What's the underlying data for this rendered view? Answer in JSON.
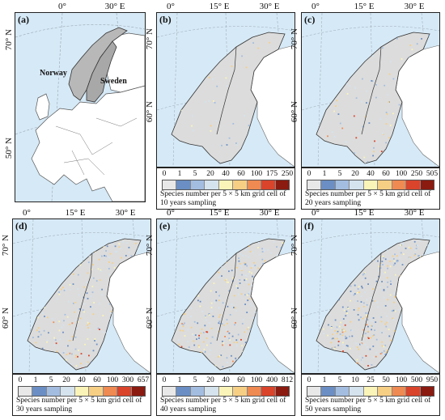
{
  "legend_colors": [
    "#e8e8e8",
    "#6b8fc4",
    "#a3bde0",
    "#d4e3ee",
    "#fbf4b8",
    "#f6cf85",
    "#ef8a52",
    "#d9442b",
    "#8b1a10"
  ],
  "land_color": "#dcdcdc",
  "sea_color": "#d6e9f6",
  "panels": [
    {
      "label": "(a)",
      "ticks_top": [
        "0°",
        "30° E"
      ],
      "ticks_left": [
        "70° N",
        "50° N"
      ],
      "countries": [
        "Norway",
        "Sweden"
      ]
    },
    {
      "label": "(b)",
      "ticks_top": [
        "0°",
        "15° E",
        "30° E"
      ],
      "ticks_left": [
        "70° N",
        "60° N"
      ],
      "legend_ticks": [
        "0",
        "1",
        "5",
        "20",
        "40",
        "60",
        "100",
        "175",
        "250"
      ],
      "legend_caption": "Species number per 5 × 5 km grid cell of 10 years sampling"
    },
    {
      "label": "(c)",
      "ticks_top": [
        "0°",
        "15° E",
        "30° E"
      ],
      "ticks_left": [
        "70° N",
        "60° N"
      ],
      "legend_ticks": [
        "0",
        "1",
        "5",
        "20",
        "40",
        "60",
        "100",
        "250",
        "505"
      ],
      "legend_caption": "Species number per 5 × 5 km grid cell of 20 years sampling"
    },
    {
      "label": "(d)",
      "ticks_top": [
        "0°",
        "15° E",
        "30° E"
      ],
      "ticks_left": [
        "70° N",
        "60° N"
      ],
      "legend_ticks": [
        "0",
        "1",
        "5",
        "20",
        "40",
        "60",
        "100",
        "300",
        "657"
      ],
      "legend_caption": "Species number per 5 × 5 km grid cell of 30 years sampling"
    },
    {
      "label": "(e)",
      "ticks_top": [
        "0°",
        "15° E",
        "30° E"
      ],
      "ticks_left": [
        "70° N",
        "60° N"
      ],
      "legend_ticks": [
        "0",
        "1",
        "5",
        "20",
        "40",
        "60",
        "100",
        "400",
        "812"
      ],
      "legend_caption": "Species number per 5 × 5 km grid cell of 40 years sampling"
    },
    {
      "label": "(f)",
      "ticks_top": [
        "0°",
        "15° E",
        "30° E"
      ],
      "ticks_left": [
        "70° N",
        "60° N"
      ],
      "legend_ticks": [
        "0",
        "1",
        "5",
        "10",
        "25",
        "50",
        "100",
        "500",
        "950"
      ],
      "legend_caption": "Species number per 5 × 5 km grid cell of 50 years sampling"
    }
  ]
}
